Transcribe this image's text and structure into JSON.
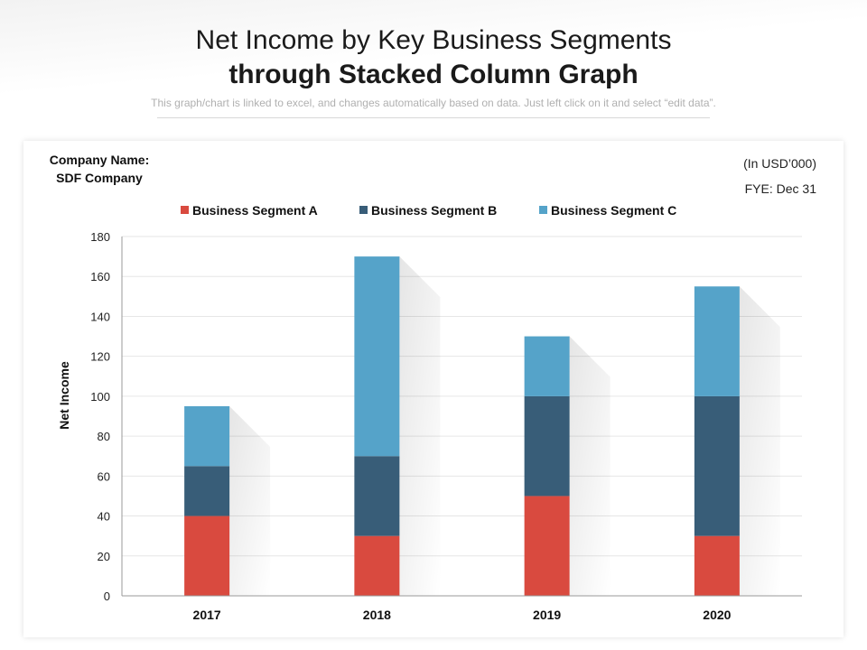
{
  "header": {
    "title_line1": "Net Income by Key Business Segments",
    "title_line2": "through Stacked Column Graph",
    "subtitle": "This graph/chart is linked to excel, and changes automatically based on data. Just left click on it and select “edit data”."
  },
  "info": {
    "company_label": "Company Name:",
    "company_name": "SDF Company",
    "currency": "(In USD’000)",
    "fye": "FYE: Dec 31"
  },
  "colors": {
    "segment_a": "#d94a3f",
    "segment_b": "#385d78",
    "segment_c": "#55a3c9",
    "grid": "#e6e6e6",
    "axis": "#999999"
  },
  "chart_data": {
    "type": "bar",
    "stacked": true,
    "categories": [
      "2017",
      "2018",
      "2019",
      "2020"
    ],
    "series": [
      {
        "name": "Business Segment A",
        "values": [
          40,
          30,
          50,
          30
        ]
      },
      {
        "name": "Business Segment B",
        "values": [
          25,
          40,
          50,
          70
        ]
      },
      {
        "name": "Business Segment C",
        "values": [
          30,
          100,
          30,
          55
        ]
      }
    ],
    "xlabel": "",
    "ylabel": "Net Income",
    "ylim": [
      0,
      180
    ],
    "yticks": [
      0,
      20,
      40,
      60,
      80,
      100,
      120,
      140,
      160,
      180
    ],
    "grid": true,
    "legend_position": "top-center"
  }
}
